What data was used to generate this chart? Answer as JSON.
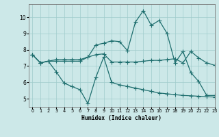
{
  "xlabel": "Humidex (Indice chaleur)",
  "bg_color": "#cce8e8",
  "line_color": "#1e6e6e",
  "grid_color": "#a0cccc",
  "xlim": [
    -0.5,
    23
  ],
  "ylim": [
    4.5,
    10.8
  ],
  "yticks": [
    5,
    6,
    7,
    8,
    9,
    10
  ],
  "xticks": [
    0,
    1,
    2,
    3,
    4,
    5,
    6,
    7,
    8,
    9,
    10,
    11,
    12,
    13,
    14,
    15,
    16,
    17,
    18,
    19,
    20,
    21,
    22,
    23
  ],
  "line1_x": [
    0,
    1,
    2,
    3,
    4,
    5,
    6,
    7,
    8,
    9,
    10,
    11,
    12,
    13,
    14,
    15,
    16,
    17,
    18,
    19,
    20,
    21,
    22,
    23
  ],
  "line1_y": [
    7.7,
    7.2,
    7.3,
    7.4,
    7.4,
    7.4,
    7.4,
    7.55,
    8.3,
    8.4,
    8.55,
    8.5,
    7.95,
    9.7,
    10.4,
    9.5,
    9.8,
    9.0,
    7.2,
    7.9,
    6.6,
    6.05,
    5.2,
    5.2
  ],
  "line2_x": [
    0,
    1,
    2,
    3,
    4,
    5,
    6,
    7,
    8,
    9,
    10,
    11,
    12,
    13,
    14,
    15,
    16,
    17,
    18,
    19,
    20,
    21,
    22,
    23
  ],
  "line2_y": [
    7.7,
    7.2,
    7.3,
    7.3,
    7.3,
    7.3,
    7.3,
    7.55,
    7.7,
    7.75,
    7.25,
    7.25,
    7.25,
    7.25,
    7.3,
    7.35,
    7.35,
    7.4,
    7.45,
    7.2,
    7.9,
    7.5,
    7.2,
    7.05
  ],
  "line3_x": [
    0,
    1,
    2,
    3,
    4,
    5,
    6,
    7,
    8,
    9,
    10,
    11,
    12,
    13,
    14,
    15,
    16,
    17,
    18,
    19,
    20,
    21,
    22,
    23
  ],
  "line3_y": [
    7.7,
    7.2,
    7.3,
    6.65,
    5.95,
    5.75,
    5.55,
    4.7,
    6.3,
    7.55,
    6.0,
    5.85,
    5.75,
    5.65,
    5.55,
    5.45,
    5.35,
    5.3,
    5.25,
    5.2,
    5.18,
    5.15,
    5.12,
    5.1
  ]
}
